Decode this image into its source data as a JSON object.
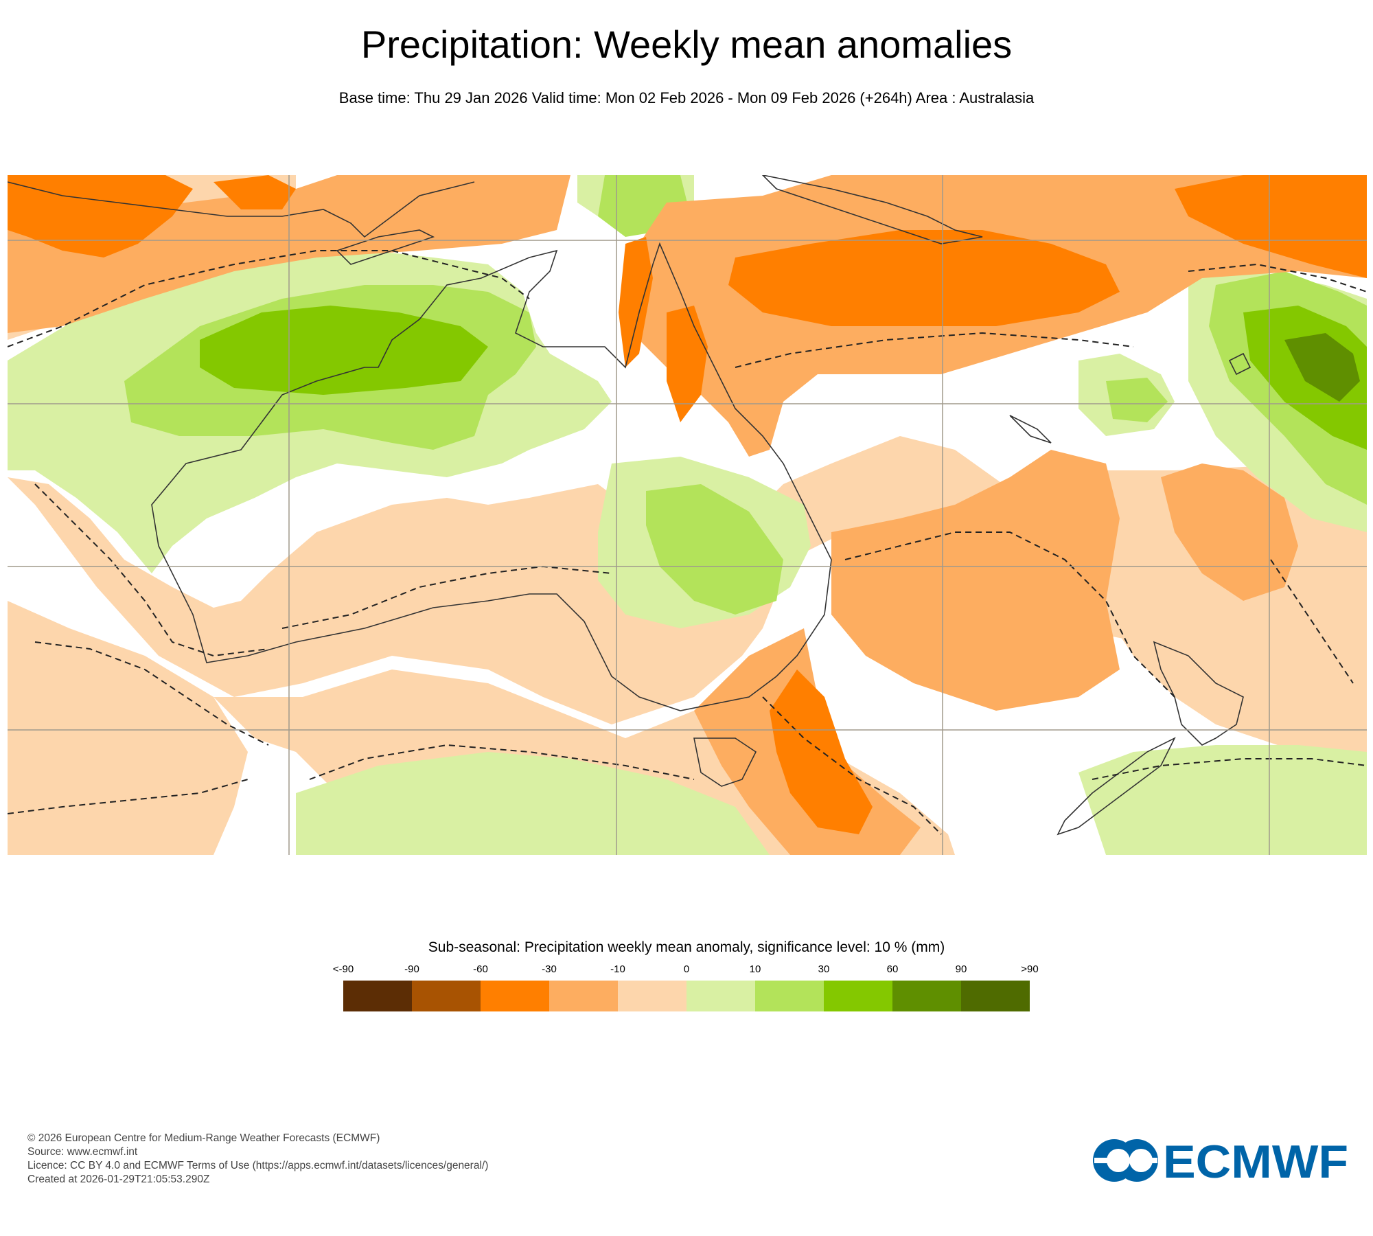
{
  "title": "Precipitation: Weekly mean anomalies",
  "subtitle": "Base time: Thu 29 Jan 2026 Valid time: Mon 02 Feb 2026 - Mon 09 Feb 2026 (+264h) Area : Australasia",
  "legend": {
    "title": "Sub-seasonal: Precipitation weekly mean anomaly, significance level: 10 % (mm)",
    "labels": [
      "<-90",
      "-90",
      "-60",
      "-30",
      "-10",
      "0",
      "10",
      "30",
      "60",
      "90",
      ">90"
    ],
    "colors": [
      "#5c2d05",
      "#a85302",
      "#ff7f00",
      "#fdad60",
      "#fdd6ac",
      "#d9f0a3",
      "#b3e35a",
      "#84c800",
      "#5f8f00",
      "#4f6b00"
    ]
  },
  "footer": {
    "line1": "© 2026 European Centre for Medium-Range Weather Forecasts (ECMWF)",
    "line2": "Source: www.ecmwf.int",
    "line3": "Licence: CC BY 4.0 and ECMWF Terms of Use (https://apps.ecmwf.int/datasets/licences/general/)",
    "line4": "Created at 2026-01-29T21:05:53.290Z"
  },
  "logo": {
    "text": "ECMWF",
    "color": "#0064a8"
  }
}
